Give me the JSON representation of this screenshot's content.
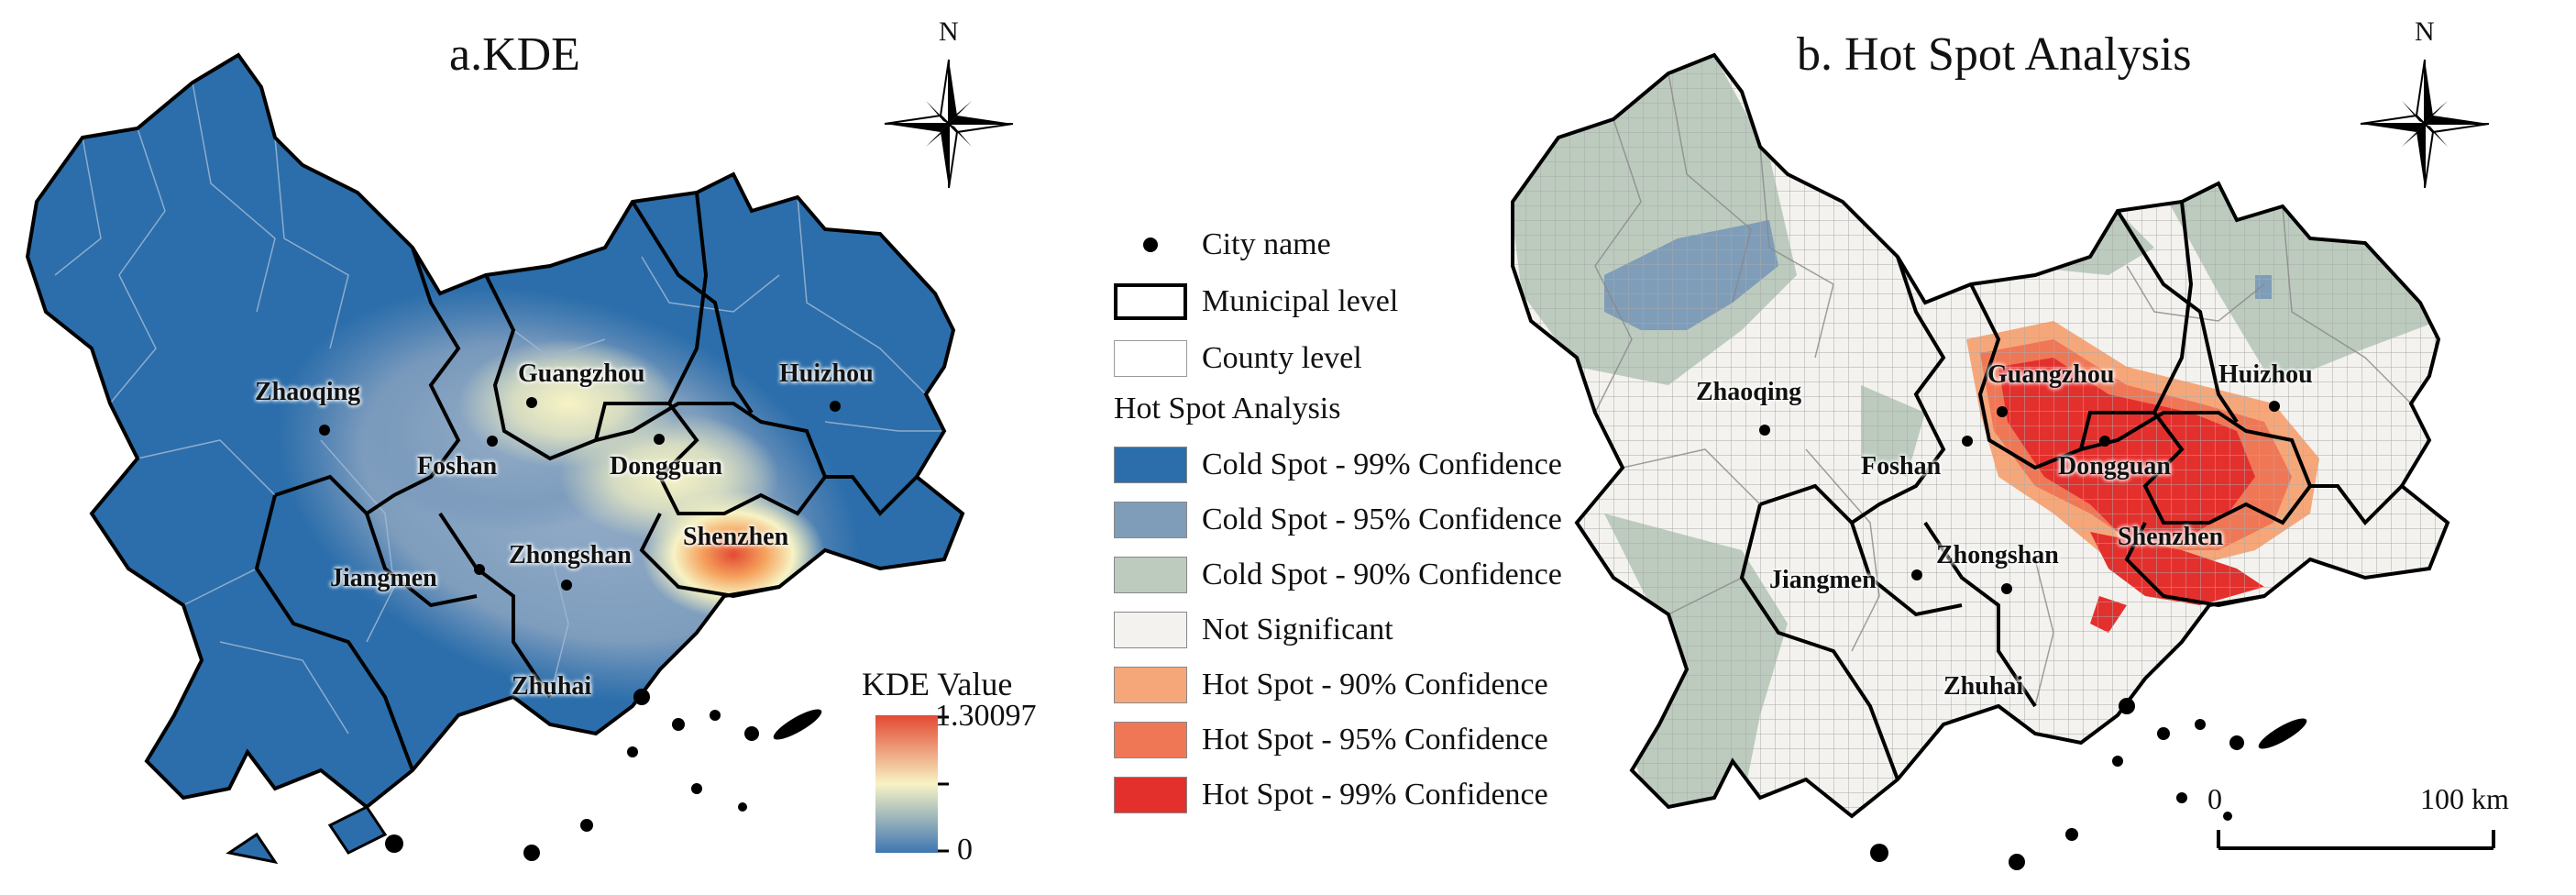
{
  "colors": {
    "cold99": "#2b6eab",
    "cold95": "#7f9db8",
    "cold90": "#bccbbe",
    "not_sig": "#f3f2ee",
    "hot90": "#f6a77a",
    "hot95": "#f07756",
    "hot99": "#e4302d",
    "kde_high": "#e34a33",
    "kde_mid": "#f7f3c4",
    "kde_low": "#3f76b1"
  },
  "panel_a": {
    "title": "a.KDE",
    "north": "N",
    "cities": [
      "Zhaoqing",
      "Guangzhou",
      "Huizhou",
      "Foshan",
      "Dongguan",
      "Shenzhen",
      "Jiangmen",
      "Zhongshan",
      "Zhuhai"
    ],
    "kde_legend": {
      "title": "KDE Value",
      "max": "1.30097",
      "min": "0"
    }
  },
  "panel_b": {
    "title": "b. Hot Spot Analysis",
    "north": "N",
    "cities": [
      "Zhaoqing",
      "Guangzhou",
      "Huizhou",
      "Foshan",
      "Dongguan",
      "Shenzhen",
      "Jiangmen",
      "Zhongshan",
      "Zhuhai"
    ],
    "scale": {
      "start": "0",
      "end": "100 km"
    }
  },
  "legend": {
    "city_name": "City name",
    "municipal": "Municipal level",
    "county": "County level",
    "section_title": "Hot Spot Analysis",
    "classes": [
      "Cold Spot - 99% Confidence",
      "Cold Spot - 95% Confidence",
      "Cold Spot - 90% Confidence",
      "Not Significant",
      "Hot Spot - 90% Confidence",
      "Hot Spot - 95% Confidence",
      "Hot Spot - 99% Confidence"
    ]
  }
}
